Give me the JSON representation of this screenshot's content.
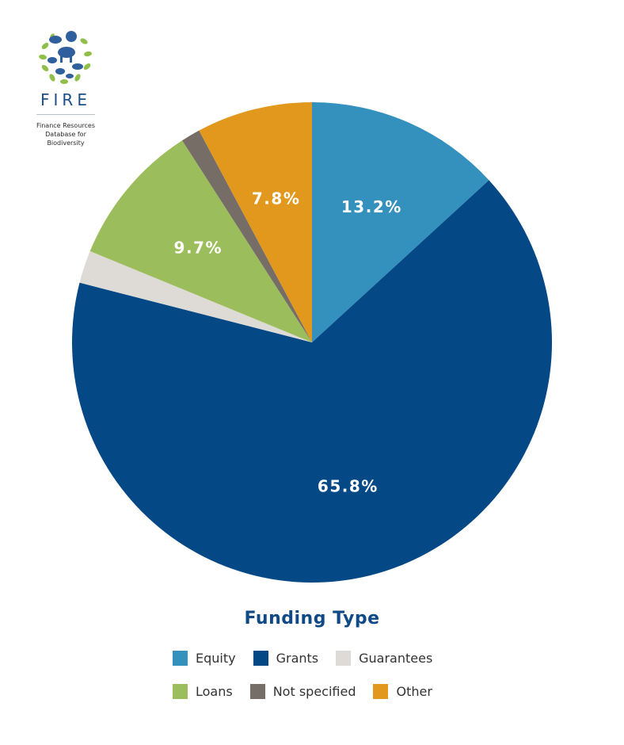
{
  "logo": {
    "wordmark": "FIRE",
    "tagline": [
      "Finance Resources",
      "Database for",
      "Biodiversity"
    ]
  },
  "chart_data": {
    "type": "pie",
    "title": "Funding Type",
    "slices": [
      {
        "name": "Equity",
        "value": 13.2,
        "label": "13.2%",
        "color": "#3490bd"
      },
      {
        "name": "Grants",
        "value": 65.8,
        "label": "65.8%",
        "color": "#044886"
      },
      {
        "name": "Guarantees",
        "value": 2.2,
        "label": "",
        "color": "#dedad5"
      },
      {
        "name": "Loans",
        "value": 9.7,
        "label": "9.7%",
        "color": "#9cbd5b"
      },
      {
        "name": "Not specified",
        "value": 1.3,
        "label": "",
        "color": "#766d66"
      },
      {
        "name": "Other",
        "value": 7.8,
        "label": "7.8%",
        "color": "#e2981d"
      }
    ],
    "start": "12 o'clock, clockwise",
    "legend_position": "bottom"
  }
}
